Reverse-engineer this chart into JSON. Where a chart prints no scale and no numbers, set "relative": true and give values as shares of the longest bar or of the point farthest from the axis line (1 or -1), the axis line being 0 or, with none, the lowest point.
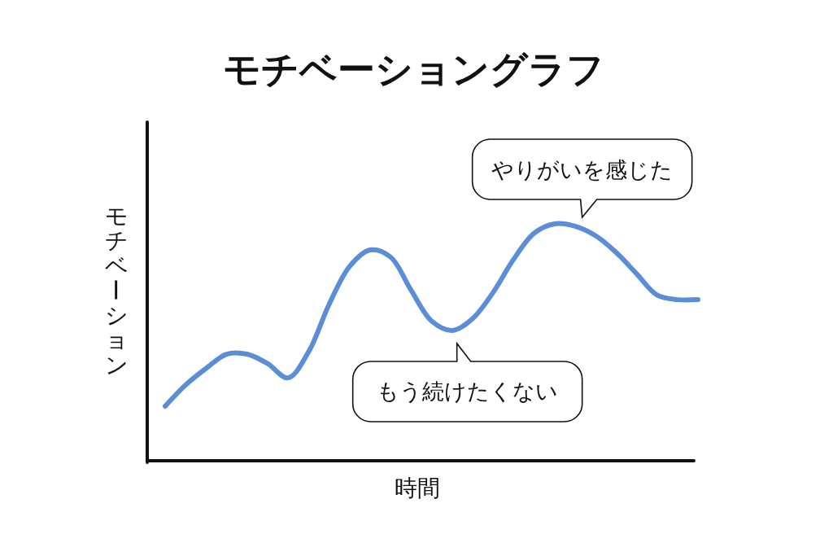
{
  "chart_data": {
    "type": "line",
    "title": "モチベーショングラフ",
    "xlabel": "時間",
    "ylabel": "モチベーション",
    "relative": true,
    "categories": [
      null,
      null,
      null,
      null,
      null,
      null,
      null,
      null,
      null,
      null,
      null,
      null,
      null,
      null,
      null,
      null,
      null,
      null,
      null,
      null,
      null,
      null,
      null,
      null,
      null,
      null,
      null
    ],
    "series": [
      {
        "color": "#5b8ed6",
        "values": [
          0.23,
          0.32,
          0.39,
          0.45,
          0.45,
          0.41,
          0.35,
          0.46,
          0.66,
          0.82,
          0.89,
          0.86,
          0.72,
          0.59,
          0.55,
          0.6,
          0.71,
          0.85,
          0.96,
          1,
          0.99,
          0.95,
          0.88,
          0.79,
          0.7,
          0.68,
          0.68
        ]
      }
    ],
    "annotations": [
      {
        "text": "やりがいを感じた",
        "y": 1
      },
      {
        "text": "もう続けたくない",
        "y": 0.55
      }
    ]
  }
}
